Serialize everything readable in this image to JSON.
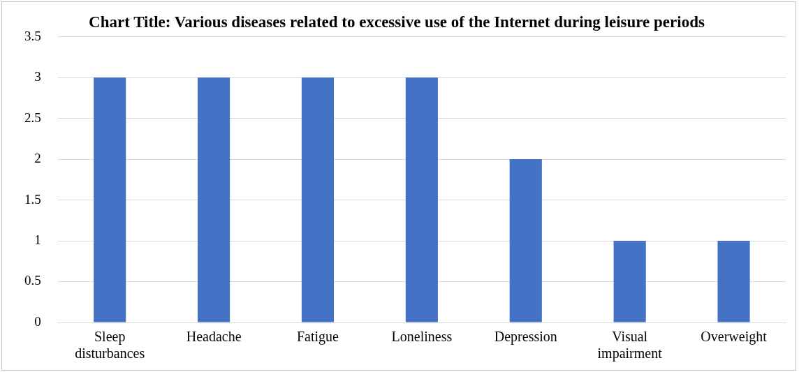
{
  "chart_data": {
    "type": "bar",
    "title": "Chart Title: Various diseases related to excessive use of the Internet during leisure periods",
    "categories": [
      "Sleep disturbances",
      "Headache",
      "Fatigue",
      "Loneliness",
      "Depression",
      "Visual impairment",
      "Overweight"
    ],
    "values": [
      3,
      3,
      3,
      3,
      2,
      1,
      1
    ],
    "color": "#4472c4",
    "ylim": [
      0,
      3.5
    ],
    "yticks": [
      0,
      0.5,
      1,
      1.5,
      2,
      2.5,
      3,
      3.5
    ],
    "grid": "y",
    "legend": false
  }
}
